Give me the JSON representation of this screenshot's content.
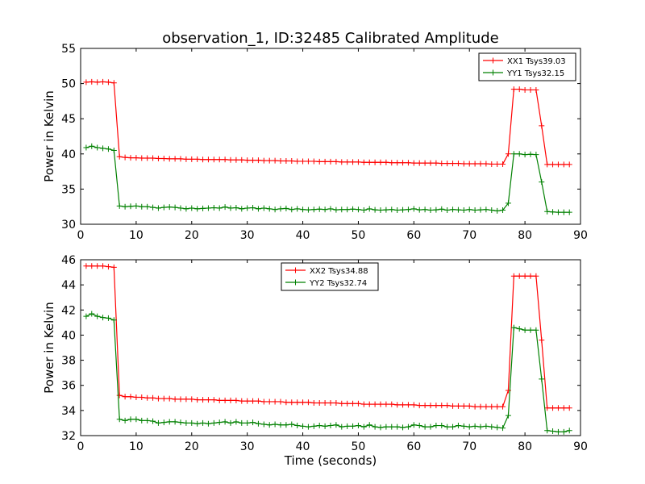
{
  "figure": {
    "title": "observation_1, ID:32485 Calibrated Amplitude",
    "xlabel": "Time (seconds)"
  },
  "chart_data": [
    {
      "type": "line",
      "title": "observation_1, ID:32485 Calibrated Amplitude",
      "xlabel": "",
      "ylabel": "Power in Kelvin",
      "xlim": [
        0,
        90
      ],
      "ylim": [
        30,
        55
      ],
      "xticks": [
        "0",
        "10",
        "20",
        "30",
        "40",
        "50",
        "60",
        "70",
        "80",
        "90"
      ],
      "yticks": [
        "30",
        "35",
        "40",
        "45",
        "50",
        "55"
      ],
      "legend_position": "top-right",
      "grid": false,
      "x": [
        1,
        2,
        3,
        4,
        5,
        6,
        7,
        8,
        9,
        10,
        11,
        12,
        13,
        14,
        15,
        16,
        17,
        18,
        19,
        20,
        21,
        22,
        23,
        24,
        25,
        26,
        27,
        28,
        29,
        30,
        31,
        32,
        33,
        34,
        35,
        36,
        37,
        38,
        39,
        40,
        41,
        42,
        43,
        44,
        45,
        46,
        47,
        48,
        49,
        50,
        51,
        52,
        53,
        54,
        55,
        56,
        57,
        58,
        59,
        60,
        61,
        62,
        63,
        64,
        65,
        66,
        67,
        68,
        69,
        70,
        71,
        72,
        73,
        74,
        75,
        76,
        77,
        78,
        79,
        80,
        81,
        82,
        83,
        84,
        85,
        86,
        87,
        88
      ],
      "series": [
        {
          "name": "XX1 Tsys39.03",
          "color": "#ff0000",
          "values": [
            50.2,
            50.25,
            50.2,
            50.25,
            50.2,
            50.1,
            39.6,
            39.5,
            39.45,
            39.45,
            39.4,
            39.4,
            39.4,
            39.35,
            39.35,
            39.3,
            39.3,
            39.3,
            39.25,
            39.25,
            39.25,
            39.2,
            39.2,
            39.2,
            39.2,
            39.2,
            39.15,
            39.15,
            39.15,
            39.1,
            39.1,
            39.1,
            39.05,
            39.05,
            39.05,
            39.0,
            39.0,
            39.0,
            38.95,
            38.95,
            38.95,
            38.95,
            38.9,
            38.9,
            38.9,
            38.9,
            38.85,
            38.85,
            38.85,
            38.85,
            38.8,
            38.8,
            38.8,
            38.8,
            38.8,
            38.75,
            38.75,
            38.75,
            38.75,
            38.7,
            38.7,
            38.7,
            38.7,
            38.7,
            38.65,
            38.65,
            38.65,
            38.65,
            38.6,
            38.6,
            38.6,
            38.6,
            38.6,
            38.55,
            38.55,
            38.55,
            40.0,
            49.2,
            49.2,
            49.1,
            49.1,
            49.1,
            44.0,
            38.5,
            38.5,
            38.5,
            38.5,
            38.5
          ]
        },
        {
          "name": "YY1 Tsys32.15",
          "color": "#008000",
          "values": [
            40.9,
            41.1,
            40.9,
            40.8,
            40.7,
            40.5,
            32.6,
            32.5,
            32.55,
            32.6,
            32.5,
            32.5,
            32.4,
            32.3,
            32.4,
            32.45,
            32.4,
            32.3,
            32.2,
            32.3,
            32.2,
            32.25,
            32.3,
            32.35,
            32.3,
            32.45,
            32.3,
            32.35,
            32.2,
            32.3,
            32.35,
            32.2,
            32.3,
            32.2,
            32.1,
            32.2,
            32.25,
            32.1,
            32.2,
            32.1,
            32.05,
            32.1,
            32.15,
            32.1,
            32.2,
            32.05,
            32.1,
            32.1,
            32.15,
            32.1,
            32.0,
            32.2,
            32.05,
            32.0,
            32.05,
            32.1,
            32.0,
            32.05,
            32.1,
            32.2,
            32.05,
            32.1,
            32.0,
            32.05,
            32.15,
            32.0,
            32.1,
            32.05,
            32.0,
            32.1,
            32.0,
            32.05,
            32.1,
            32.0,
            31.9,
            32.0,
            33.0,
            40.0,
            40.0,
            39.9,
            39.95,
            39.9,
            36.0,
            31.8,
            31.75,
            31.7,
            31.7,
            31.7
          ]
        }
      ]
    },
    {
      "type": "line",
      "title": "",
      "xlabel": "Time (seconds)",
      "ylabel": "Power in Kelvin",
      "xlim": [
        0,
        90
      ],
      "ylim": [
        32,
        46
      ],
      "xticks": [
        "0",
        "10",
        "20",
        "30",
        "40",
        "50",
        "60",
        "70",
        "80",
        "90"
      ],
      "yticks": [
        "32",
        "34",
        "36",
        "38",
        "40",
        "42",
        "44",
        "46"
      ],
      "legend_position": "top-center",
      "grid": false,
      "x": [
        1,
        2,
        3,
        4,
        5,
        6,
        7,
        8,
        9,
        10,
        11,
        12,
        13,
        14,
        15,
        16,
        17,
        18,
        19,
        20,
        21,
        22,
        23,
        24,
        25,
        26,
        27,
        28,
        29,
        30,
        31,
        32,
        33,
        34,
        35,
        36,
        37,
        38,
        39,
        40,
        41,
        42,
        43,
        44,
        45,
        46,
        47,
        48,
        49,
        50,
        51,
        52,
        53,
        54,
        55,
        56,
        57,
        58,
        59,
        60,
        61,
        62,
        63,
        64,
        65,
        66,
        67,
        68,
        69,
        70,
        71,
        72,
        73,
        74,
        75,
        76,
        77,
        78,
        79,
        80,
        81,
        82,
        83,
        84,
        85,
        86,
        87,
        88
      ],
      "series": [
        {
          "name": "XX2 Tsys34.88",
          "color": "#ff0000",
          "values": [
            45.5,
            45.5,
            45.5,
            45.5,
            45.45,
            45.4,
            35.2,
            35.1,
            35.1,
            35.05,
            35.05,
            35.0,
            35.0,
            34.95,
            34.95,
            34.95,
            34.9,
            34.9,
            34.9,
            34.9,
            34.85,
            34.85,
            34.85,
            34.85,
            34.8,
            34.8,
            34.8,
            34.8,
            34.75,
            34.75,
            34.75,
            34.75,
            34.7,
            34.7,
            34.7,
            34.7,
            34.65,
            34.65,
            34.65,
            34.65,
            34.65,
            34.6,
            34.6,
            34.6,
            34.6,
            34.6,
            34.55,
            34.55,
            34.55,
            34.55,
            34.5,
            34.5,
            34.5,
            34.5,
            34.5,
            34.5,
            34.45,
            34.45,
            34.45,
            34.45,
            34.4,
            34.4,
            34.4,
            34.4,
            34.4,
            34.4,
            34.35,
            34.35,
            34.35,
            34.35,
            34.3,
            34.3,
            34.3,
            34.3,
            34.3,
            34.3,
            35.6,
            44.7,
            44.7,
            44.7,
            44.7,
            44.7,
            39.6,
            34.2,
            34.2,
            34.2,
            34.2,
            34.2
          ]
        },
        {
          "name": "YY2 Tsys32.74",
          "color": "#008000",
          "values": [
            41.5,
            41.7,
            41.5,
            41.4,
            41.35,
            41.2,
            33.3,
            33.2,
            33.3,
            33.3,
            33.2,
            33.2,
            33.15,
            33.0,
            33.05,
            33.1,
            33.1,
            33.05,
            33.0,
            33.0,
            32.95,
            33.0,
            32.95,
            33.0,
            33.05,
            33.1,
            33.0,
            33.1,
            33.0,
            33.0,
            33.05,
            32.95,
            32.9,
            32.85,
            32.9,
            32.85,
            32.85,
            32.9,
            32.8,
            32.75,
            32.7,
            32.75,
            32.8,
            32.75,
            32.8,
            32.85,
            32.7,
            32.75,
            32.75,
            32.8,
            32.7,
            32.85,
            32.7,
            32.65,
            32.7,
            32.7,
            32.7,
            32.65,
            32.7,
            32.85,
            32.8,
            32.7,
            32.7,
            32.8,
            32.8,
            32.7,
            32.7,
            32.8,
            32.75,
            32.7,
            32.75,
            32.7,
            32.75,
            32.7,
            32.65,
            32.6,
            33.6,
            40.6,
            40.5,
            40.4,
            40.4,
            40.4,
            36.5,
            32.4,
            32.35,
            32.3,
            32.3,
            32.4
          ]
        }
      ]
    }
  ]
}
